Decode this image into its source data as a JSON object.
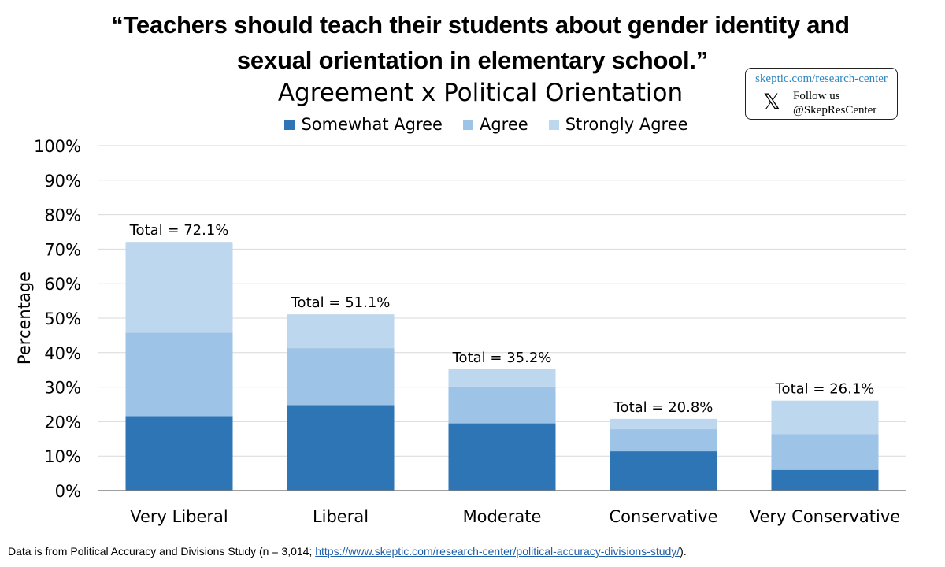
{
  "header": {
    "title_line1": "“Teachers should teach their students about gender identity and",
    "title_line2": "sexual orientation in elementary school.”",
    "subtitle": "Agreement x Political Orientation"
  },
  "badge": {
    "url": "skeptic.com/research-center",
    "follow": "Follow us",
    "handle": "@SkepResCenter",
    "icon": "x-logo-icon"
  },
  "footnote": {
    "prefix": "Data is from Political Accuracy and Divisions Study (n = 3,014; ",
    "link": "https://www.skeptic.com/research-center/political-accuracy-divisions-study/",
    "suffix": ")."
  },
  "chart_data": {
    "type": "bar",
    "stacked": true,
    "categories": [
      "Very Liberal",
      "Liberal",
      "Moderate",
      "Conservative",
      "Very Conservative"
    ],
    "series": [
      {
        "name": "Somewhat Agree",
        "color": "#2e75b6",
        "values": [
          21.6,
          24.8,
          19.5,
          11.4,
          6.0
        ]
      },
      {
        "name": "Agree",
        "color": "#9dc3e6",
        "values": [
          24.2,
          16.5,
          10.7,
          6.4,
          10.4
        ]
      },
      {
        "name": "Strongly Agree",
        "color": "#bdd7ee",
        "values": [
          26.3,
          9.8,
          5.0,
          3.0,
          9.7
        ]
      }
    ],
    "totals": [
      "Total = 72.1%",
      "Total = 51.1%",
      "Total = 35.2%",
      "Total = 20.8%",
      "Total = 26.1%"
    ],
    "ylabel": "Percentage",
    "yticks": [
      "0%",
      "10%",
      "20%",
      "30%",
      "40%",
      "50%",
      "60%",
      "70%",
      "80%",
      "90%",
      "100%"
    ],
    "ylim": [
      0,
      100
    ],
    "grid": true,
    "legend_position": "top"
  }
}
